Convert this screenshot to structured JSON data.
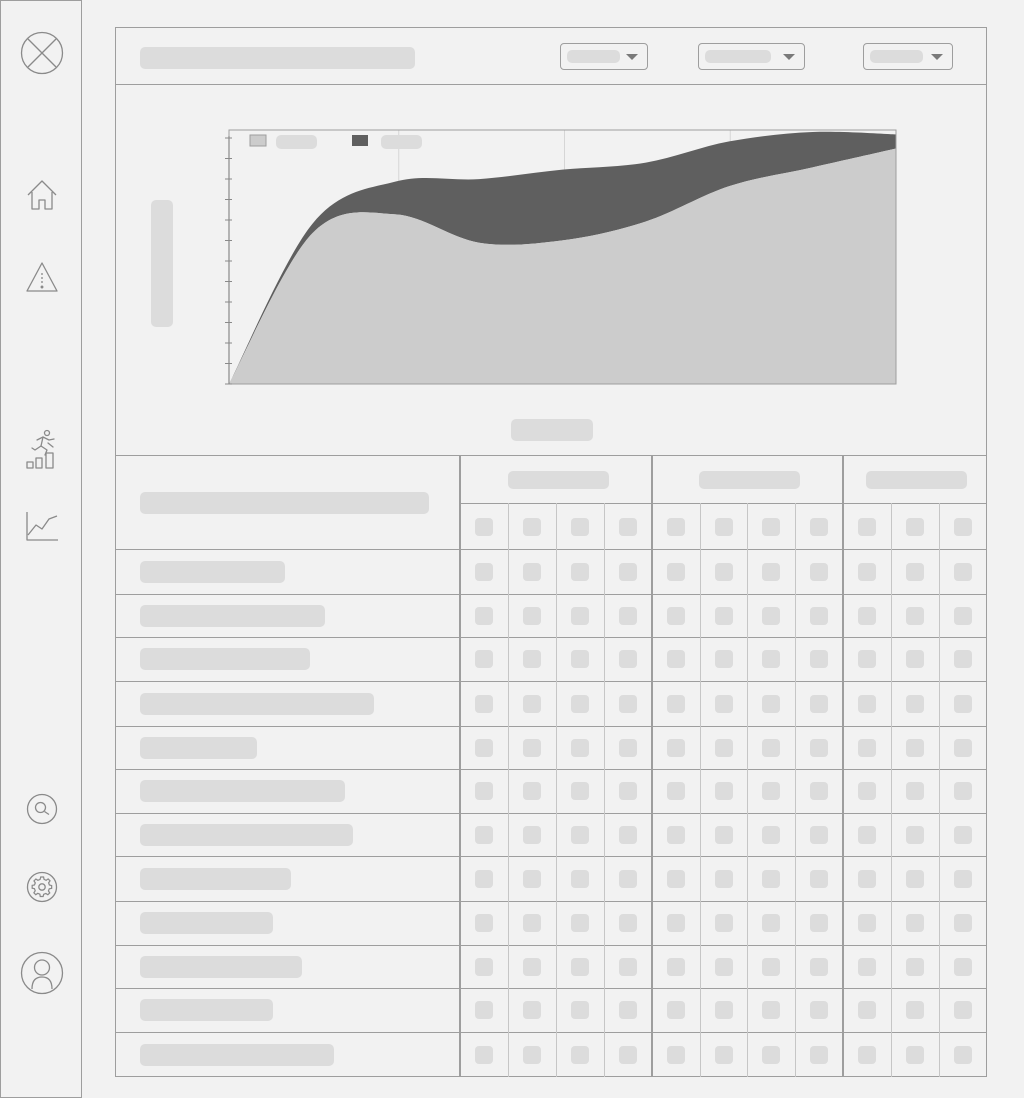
{
  "sidebar": {
    "items": [
      {
        "icon": "close-circle-icon"
      },
      {
        "icon": "home-icon"
      },
      {
        "icon": "warning-icon"
      },
      {
        "icon": "runner-progress-icon"
      },
      {
        "icon": "line-chart-icon"
      },
      {
        "icon": "search-icon"
      },
      {
        "icon": "gear-icon"
      },
      {
        "icon": "user-avatar-icon"
      }
    ]
  },
  "header": {
    "title": "",
    "filters": [
      {
        "value": ""
      },
      {
        "value": ""
      },
      {
        "value": ""
      }
    ]
  },
  "chart_data": {
    "type": "area",
    "title": "",
    "xlabel": "",
    "ylabel": "",
    "legend_position": "top-left",
    "grid": true,
    "colors": [
      "#cccccc",
      "#5f5f5f"
    ],
    "series": [
      {
        "name": "",
        "values": [
          0,
          64,
          72,
          60,
          61,
          69,
          84,
          92,
          100
        ]
      },
      {
        "name": "",
        "values": [
          0,
          4,
          14,
          27,
          30,
          25,
          19,
          15,
          6
        ]
      }
    ]
  },
  "table": {
    "header_label": "",
    "groups": [
      {
        "label": "",
        "columns": 4
      },
      {
        "label": "",
        "columns": 4
      },
      {
        "label": "",
        "columns": 3
      }
    ],
    "rows": [
      {
        "label": ""
      },
      {
        "label": ""
      },
      {
        "label": ""
      },
      {
        "label": ""
      },
      {
        "label": ""
      },
      {
        "label": ""
      },
      {
        "label": ""
      },
      {
        "label": ""
      },
      {
        "label": ""
      },
      {
        "label": ""
      },
      {
        "label": ""
      },
      {
        "label": ""
      }
    ]
  }
}
